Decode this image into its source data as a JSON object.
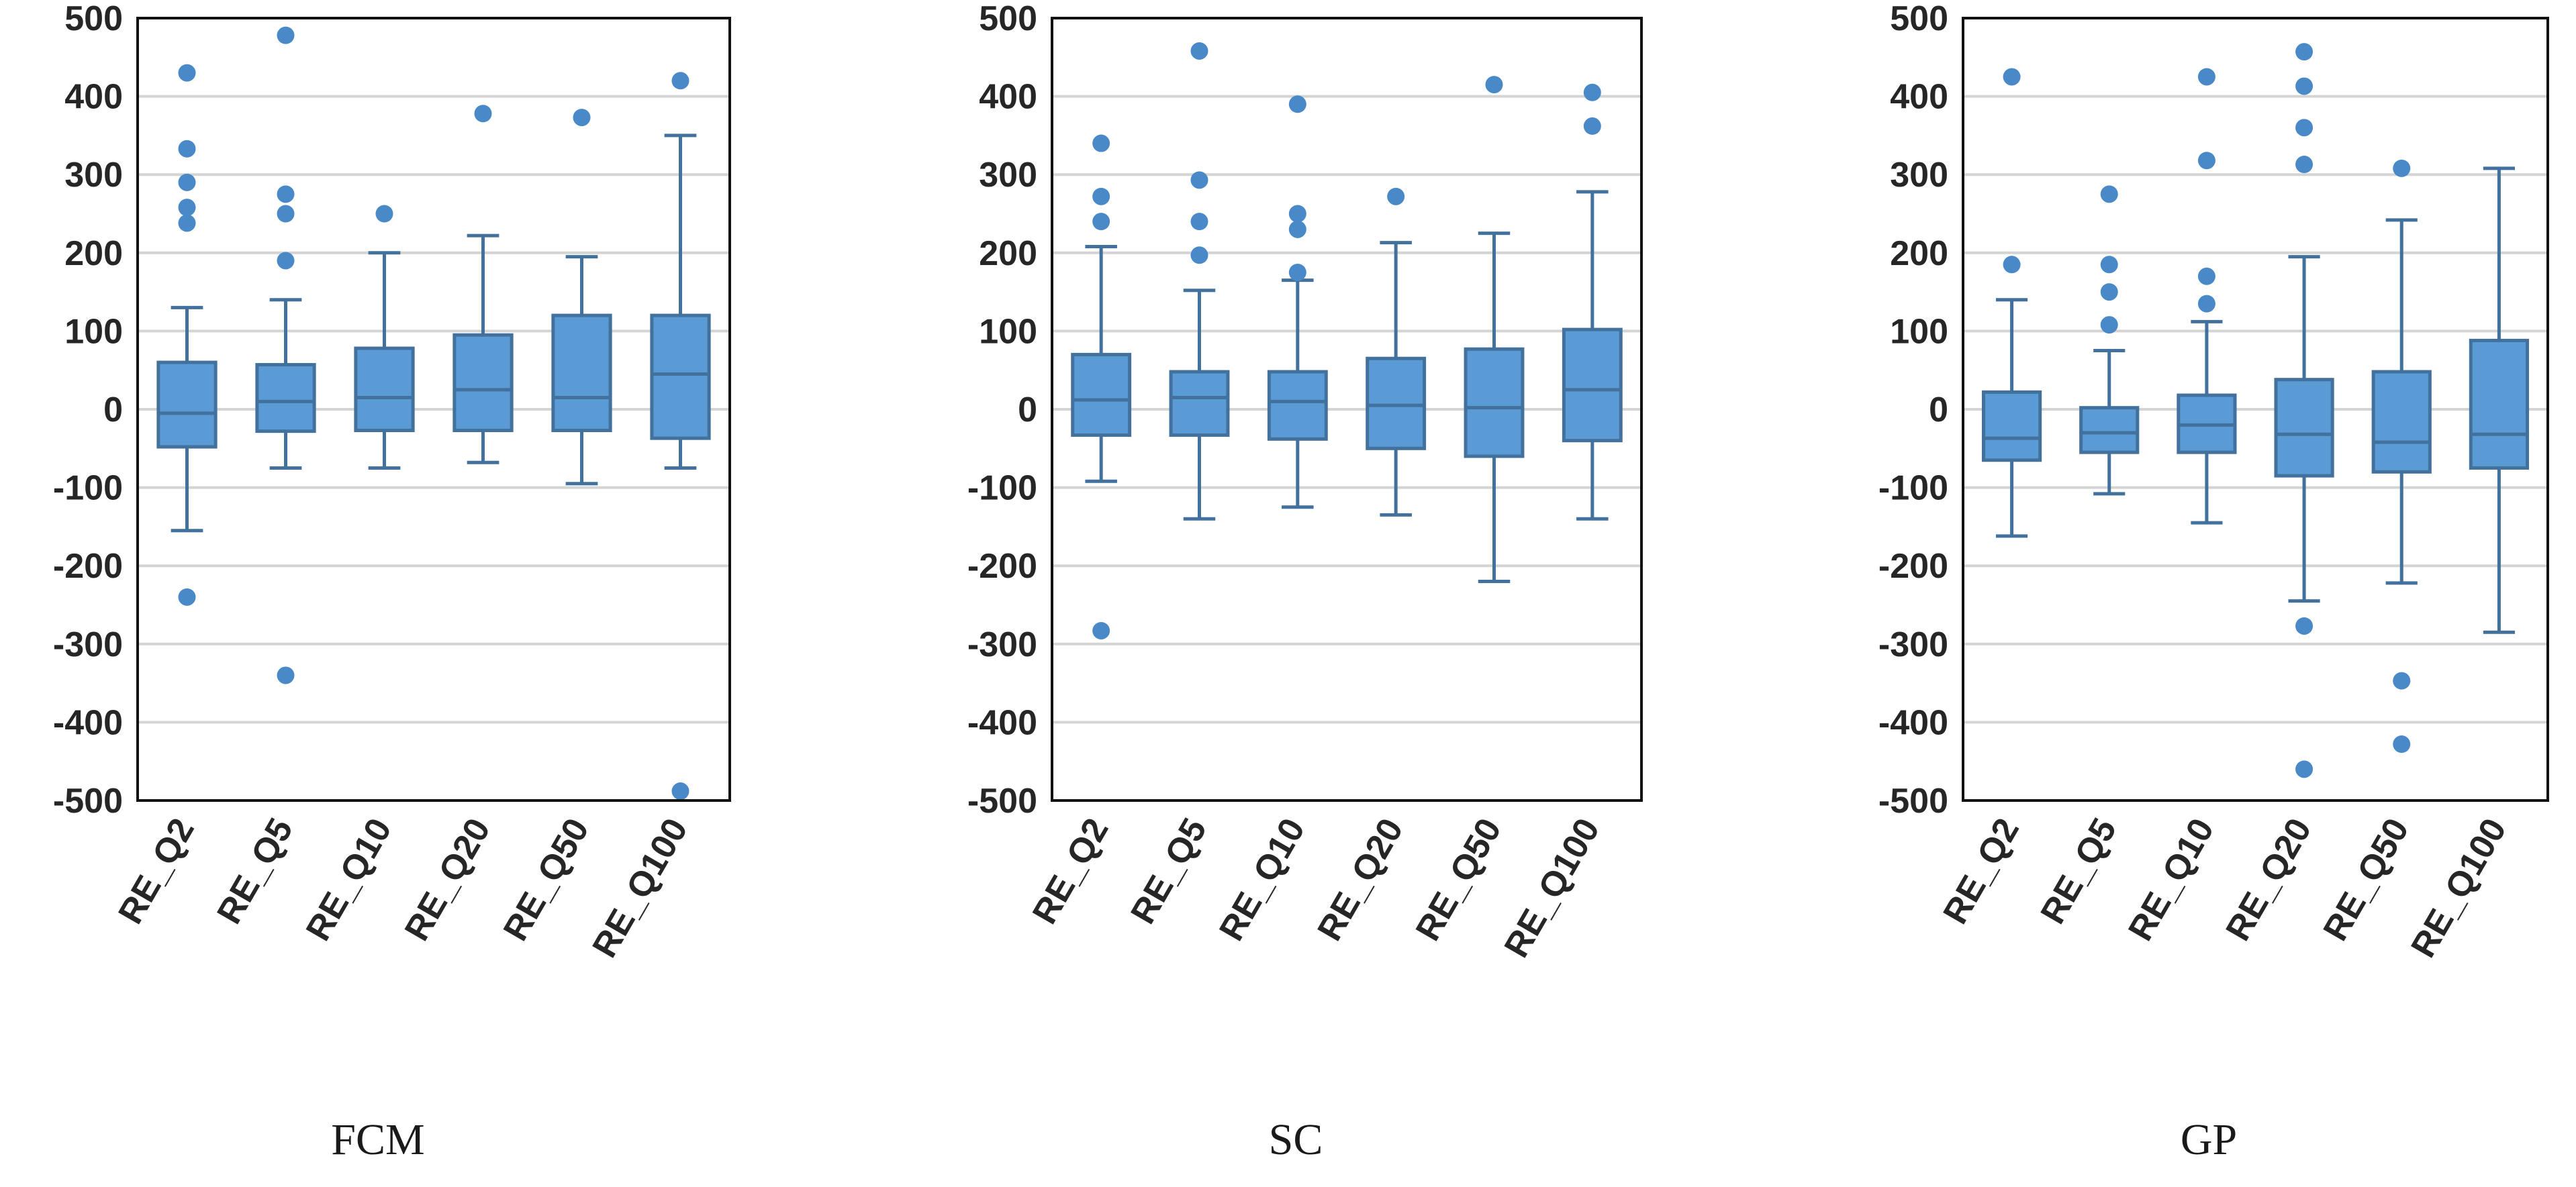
{
  "colors": {
    "box_fill": "#5b9bd5",
    "box_stroke": "#41719c",
    "outlier": "#4a89c8",
    "grid": "#d4d4d4",
    "frame": "#111111"
  },
  "chart_data": [
    {
      "type": "box",
      "caption": "FCM",
      "categories": [
        "RE_Q2",
        "RE_Q5",
        "RE_Q10",
        "RE_Q20",
        "RE_Q50",
        "RE_Q100"
      ],
      "yticks": [
        "500",
        "400",
        "300",
        "200",
        "100",
        "0",
        "-100",
        "-200",
        "-300",
        "-400",
        "-500"
      ],
      "ylim": [
        -500,
        500
      ],
      "grid": true,
      "boxes": [
        {
          "category": "RE_Q2",
          "whisker_low": -155,
          "q1": -48,
          "median": -5,
          "q3": 60,
          "whisker_high": 130,
          "outliers": [
            430,
            333,
            290,
            258,
            238,
            -240
          ]
        },
        {
          "category": "RE_Q5",
          "whisker_low": -75,
          "q1": -28,
          "median": 10,
          "q3": 57,
          "whisker_high": 140,
          "outliers": [
            478,
            275,
            250,
            190,
            -340
          ]
        },
        {
          "category": "RE_Q10",
          "whisker_low": -75,
          "q1": -27,
          "median": 15,
          "q3": 78,
          "whisker_high": 200,
          "outliers": [
            250
          ]
        },
        {
          "category": "RE_Q20",
          "whisker_low": -68,
          "q1": -27,
          "median": 25,
          "q3": 95,
          "whisker_high": 222,
          "outliers": [
            378
          ]
        },
        {
          "category": "RE_Q50",
          "whisker_low": -95,
          "q1": -27,
          "median": 15,
          "q3": 120,
          "whisker_high": 195,
          "outliers": [
            373
          ]
        },
        {
          "category": "RE_Q100",
          "whisker_low": -75,
          "q1": -37,
          "median": 45,
          "q3": 120,
          "whisker_high": 350,
          "outliers": [
            420,
            -488
          ]
        }
      ]
    },
    {
      "type": "box",
      "caption": "SC",
      "categories": [
        "RE_Q2",
        "RE_Q5",
        "RE_Q10",
        "RE_Q20",
        "RE_Q50",
        "RE_Q100"
      ],
      "yticks": [
        "500",
        "400",
        "300",
        "200",
        "100",
        "0",
        "-100",
        "-200",
        "-300",
        "-400",
        "-500"
      ],
      "ylim": [
        -500,
        500
      ],
      "grid": true,
      "boxes": [
        {
          "category": "RE_Q2",
          "whisker_low": -92,
          "q1": -33,
          "median": 12,
          "q3": 70,
          "whisker_high": 208,
          "outliers": [
            340,
            272,
            240,
            -283
          ]
        },
        {
          "category": "RE_Q5",
          "whisker_low": -140,
          "q1": -33,
          "median": 15,
          "q3": 48,
          "whisker_high": 152,
          "outliers": [
            458,
            293,
            240,
            197
          ]
        },
        {
          "category": "RE_Q10",
          "whisker_low": -125,
          "q1": -38,
          "median": 10,
          "q3": 48,
          "whisker_high": 165,
          "outliers": [
            390,
            250,
            230,
            175
          ]
        },
        {
          "category": "RE_Q20",
          "whisker_low": -135,
          "q1": -50,
          "median": 5,
          "q3": 65,
          "whisker_high": 213,
          "outliers": [
            272
          ]
        },
        {
          "category": "RE_Q50",
          "whisker_low": -220,
          "q1": -60,
          "median": 2,
          "q3": 77,
          "whisker_high": 225,
          "outliers": [
            415
          ]
        },
        {
          "category": "RE_Q100",
          "whisker_low": -140,
          "q1": -40,
          "median": 25,
          "q3": 102,
          "whisker_high": 278,
          "outliers": [
            405,
            362
          ]
        }
      ]
    },
    {
      "type": "box",
      "caption": "GP",
      "categories": [
        "RE_Q2",
        "RE_Q5",
        "RE_Q10",
        "RE_Q20",
        "RE_Q50",
        "RE_Q100"
      ],
      "yticks": [
        "500",
        "400",
        "300",
        "200",
        "100",
        "0",
        "-100",
        "-200",
        "-300",
        "-400",
        "-500"
      ],
      "ylim": [
        -500,
        500
      ],
      "grid": true,
      "boxes": [
        {
          "category": "RE_Q2",
          "whisker_low": -162,
          "q1": -65,
          "median": -37,
          "q3": 22,
          "whisker_high": 140,
          "outliers": [
            425,
            185
          ]
        },
        {
          "category": "RE_Q5",
          "whisker_low": -108,
          "q1": -55,
          "median": -30,
          "q3": 2,
          "whisker_high": 75,
          "outliers": [
            275,
            185,
            150,
            108
          ]
        },
        {
          "category": "RE_Q10",
          "whisker_low": -145,
          "q1": -55,
          "median": -20,
          "q3": 18,
          "whisker_high": 112,
          "outliers": [
            425,
            318,
            170,
            135
          ]
        },
        {
          "category": "RE_Q20",
          "whisker_low": -245,
          "q1": -85,
          "median": -32,
          "q3": 38,
          "whisker_high": 195,
          "outliers": [
            457,
            413,
            360,
            313,
            -277,
            -460
          ]
        },
        {
          "category": "RE_Q50",
          "whisker_low": -222,
          "q1": -80,
          "median": -42,
          "q3": 48,
          "whisker_high": 242,
          "outliers": [
            308,
            -347,
            -428
          ]
        },
        {
          "category": "RE_Q100",
          "whisker_low": -285,
          "q1": -75,
          "median": -32,
          "q3": 88,
          "whisker_high": 308,
          "outliers": []
        }
      ]
    }
  ]
}
